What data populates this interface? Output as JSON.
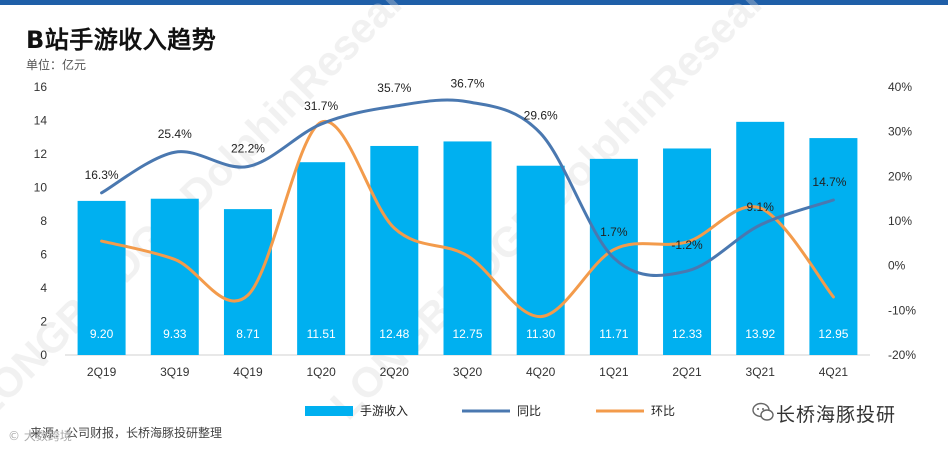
{
  "page": {
    "title": "B站手游收入趋势",
    "unit_label": "单位：亿元",
    "source_note": "来源：公司财报，长桥海豚投研整理",
    "brand": "长桥海豚投研",
    "corner_mark": "© 大数跨境",
    "watermark": "LONGBRIDGE DolphinResearch"
  },
  "chart_data": {
    "type": "bar",
    "categories": [
      "2Q19",
      "3Q19",
      "4Q19",
      "1Q20",
      "2Q20",
      "3Q20",
      "4Q20",
      "1Q21",
      "2Q21",
      "3Q21",
      "4Q21"
    ],
    "series": [
      {
        "name": "手游收入",
        "type": "bar",
        "axis": "left",
        "values": [
          9.2,
          9.33,
          8.71,
          11.51,
          12.48,
          12.75,
          11.3,
          11.71,
          12.33,
          13.92,
          12.95
        ],
        "labels": [
          "9.20",
          "9.33",
          "8.71",
          "11.51",
          "12.48",
          "12.75",
          "11.30",
          "11.71",
          "12.33",
          "13.92",
          "12.95"
        ]
      },
      {
        "name": "同比",
        "type": "line",
        "axis": "right",
        "values": [
          16.3,
          25.4,
          22.2,
          31.7,
          35.7,
          36.7,
          29.6,
          1.7,
          -1.2,
          9.1,
          14.7
        ],
        "labels": [
          "16.3%",
          "25.4%",
          "22.2%",
          "31.7%",
          "35.7%",
          "36.7%",
          "29.6%",
          "1.7%",
          "-1.2%",
          "9.1%",
          "14.7%"
        ]
      },
      {
        "name": "环比",
        "type": "line",
        "axis": "right",
        "values": [
          5.5,
          1.4,
          -6.6,
          32.1,
          8.4,
          2.2,
          -11.4,
          3.6,
          5.3,
          12.9,
          -7.0
        ]
      }
    ],
    "y_left": {
      "min": 0,
      "max": 16,
      "ticks": [
        "0",
        "2",
        "4",
        "6",
        "8",
        "10",
        "12",
        "14",
        "16"
      ]
    },
    "y_right": {
      "min": -20,
      "max": 40,
      "ticks": [
        "-20%",
        "-10%",
        "0%",
        "10%",
        "20%",
        "30%",
        "40%"
      ]
    },
    "legend_position": "bottom",
    "grid": false,
    "colors": {
      "bar": "#00b0f0",
      "yoy": "#4a78b0",
      "qoq": "#f39b4b",
      "accent": "#1f5fa8"
    }
  }
}
